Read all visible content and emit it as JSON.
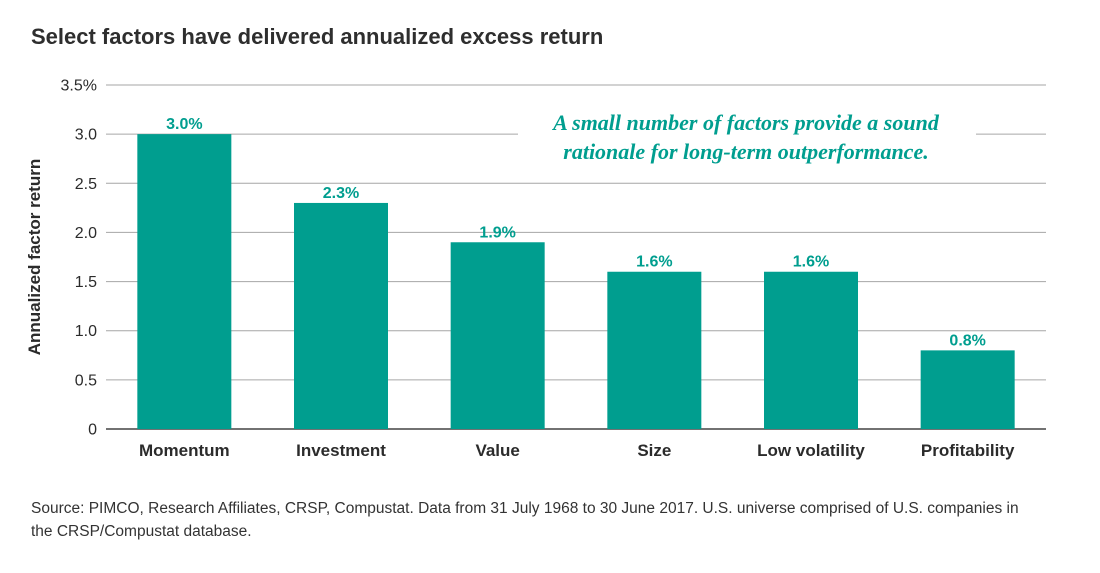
{
  "title": "Select factors have delivered annualized excess return",
  "chart_data": {
    "type": "bar",
    "categories": [
      "Momentum",
      "Investment",
      "Value",
      "Size",
      "Low volatility",
      "Profitability"
    ],
    "values": [
      3.0,
      2.3,
      1.9,
      1.6,
      1.6,
      0.8
    ],
    "data_labels": [
      "3.0%",
      "2.3%",
      "1.9%",
      "1.6%",
      "1.6%",
      "0.8%"
    ],
    "ylabel": "Annualized factor return",
    "ylim": [
      0,
      3.5
    ],
    "yticks": [
      0,
      0.5,
      1.0,
      1.5,
      2.0,
      2.5,
      3.0,
      3.5
    ],
    "ytick_labels": [
      "0",
      "0.5",
      "1.0",
      "1.5",
      "2.0",
      "2.5",
      "3.0",
      "3.5%"
    ],
    "grid": true,
    "annotation_lines": [
      "A small number of factors provide a sound",
      "rationale for long-term outperformance."
    ],
    "colors": {
      "bar": "#009e8f",
      "label": "#009e8f",
      "grid": "#a6a6a6",
      "axis": "#444444"
    }
  },
  "source": "Source: PIMCO, Research Affiliates, CRSP, Compustat. Data from 31 July 1968 to 30 June 2017. U.S. universe comprised of U.S. companies in the CRSP/Compustat database."
}
